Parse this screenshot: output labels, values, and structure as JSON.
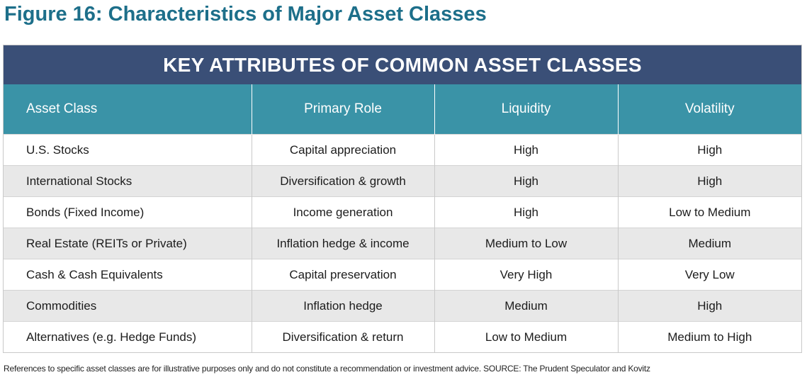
{
  "figure_title": "Figure 16: Characteristics of Major Asset Classes",
  "table": {
    "banner": "KEY ATTRIBUTES OF COMMON ASSET CLASSES",
    "headers": [
      "Asset Class",
      "Primary Role",
      "Liquidity",
      "Volatility"
    ],
    "rows": [
      [
        "U.S. Stocks",
        "Capital appreciation",
        "High",
        "High"
      ],
      [
        "International Stocks",
        "Diversification & growth",
        "High",
        "High"
      ],
      [
        "Bonds (Fixed Income)",
        "Income generation",
        "High",
        "Low to Medium"
      ],
      [
        "Real Estate (REITs or Private)",
        "Inflation hedge & income",
        "Medium to Low",
        "Medium"
      ],
      [
        "Cash & Cash Equivalents",
        "Capital preservation",
        "Very High",
        "Very Low"
      ],
      [
        "Commodities",
        "Inflation hedge",
        "Medium",
        "High"
      ],
      [
        "Alternatives (e.g. Hedge Funds)",
        "Diversification & return",
        "Low to Medium",
        "Medium to High"
      ]
    ]
  },
  "footnote": "References to specific asset classes are for illustrative purposes only and do not constitute a recommendation or investment advice. SOURCE: The Prudent Speculator and Kovitz",
  "colors": {
    "title": "#1d6f8a",
    "banner_bg": "#3a4f77",
    "header_bg": "#3a93a7",
    "row_alt_bg": "#e8e8e8"
  }
}
